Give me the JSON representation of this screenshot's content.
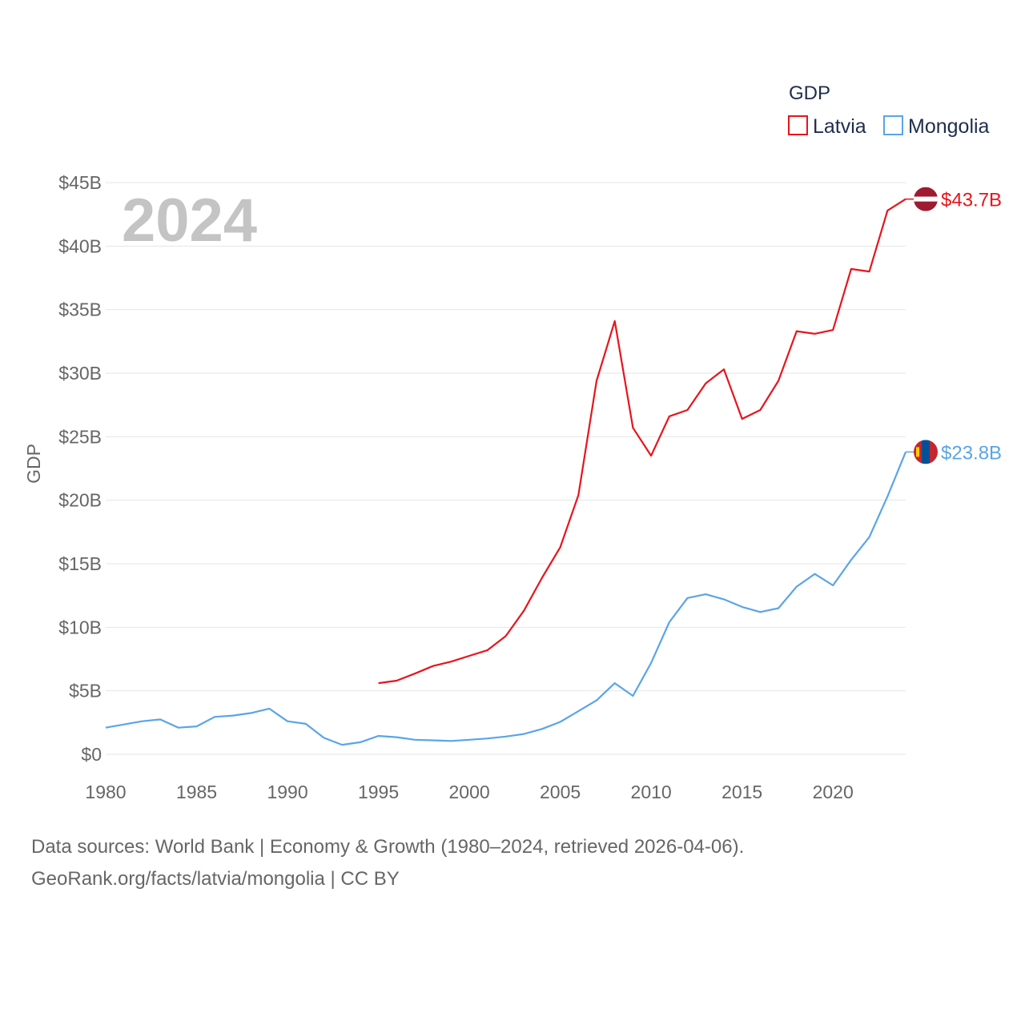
{
  "chart_data": {
    "type": "line",
    "ylabel": "GDP",
    "year_label": "2024",
    "ylim": [
      0,
      45
    ],
    "xlim": [
      1980,
      2024
    ],
    "y_ticks": [
      0,
      5,
      10,
      15,
      20,
      25,
      30,
      35,
      40,
      45
    ],
    "y_tick_labels": [
      "$0",
      "$5B",
      "$10B",
      "$15B",
      "$20B",
      "$25B",
      "$30B",
      "$35B",
      "$40B",
      "$45B"
    ],
    "x_ticks": [
      1980,
      1985,
      1990,
      1995,
      2000,
      2005,
      2010,
      2015,
      2020
    ],
    "x_tick_labels": [
      "1980",
      "1985",
      "1990",
      "1995",
      "2000",
      "2005",
      "2010",
      "2015",
      "2020"
    ],
    "legend": {
      "title": "GDP",
      "position": "top-right"
    },
    "series": [
      {
        "name": "Latvia",
        "color": "#e8141c",
        "end_label": "$43.7B",
        "flag": "latvia-flag-icon",
        "x": [
          1995,
          1996,
          1997,
          1998,
          1999,
          2000,
          2001,
          2002,
          2003,
          2004,
          2005,
          2006,
          2007,
          2008,
          2009,
          2010,
          2011,
          2012,
          2013,
          2014,
          2015,
          2016,
          2017,
          2018,
          2019,
          2020,
          2021,
          2022,
          2023,
          2024
        ],
        "values": [
          5.6,
          5.8,
          6.35,
          6.95,
          7.3,
          7.75,
          8.2,
          9.3,
          11.3,
          13.9,
          16.3,
          20.4,
          29.4,
          34.1,
          25.7,
          23.5,
          26.6,
          27.1,
          29.2,
          30.3,
          26.4,
          27.1,
          29.4,
          33.3,
          33.1,
          33.4,
          38.2,
          38.0,
          42.8,
          43.7
        ]
      },
      {
        "name": "Mongolia",
        "color": "#5aa5e6",
        "end_label": "$23.8B",
        "flag": "mongolia-flag-icon",
        "x": [
          1980,
          1981,
          1982,
          1983,
          1984,
          1985,
          1986,
          1987,
          1988,
          1989,
          1990,
          1991,
          1992,
          1993,
          1994,
          1995,
          1996,
          1997,
          1998,
          1999,
          2000,
          2001,
          2002,
          2003,
          2004,
          2005,
          2006,
          2007,
          2008,
          2009,
          2010,
          2011,
          2012,
          2013,
          2014,
          2015,
          2016,
          2017,
          2018,
          2019,
          2020,
          2021,
          2022,
          2023,
          2024
        ],
        "values": [
          2.1,
          2.35,
          2.6,
          2.75,
          2.1,
          2.2,
          2.95,
          3.05,
          3.25,
          3.6,
          2.6,
          2.4,
          1.3,
          0.75,
          0.95,
          1.45,
          1.35,
          1.15,
          1.1,
          1.05,
          1.15,
          1.25,
          1.4,
          1.6,
          2.0,
          2.55,
          3.4,
          4.25,
          5.6,
          4.6,
          7.2,
          10.4,
          12.3,
          12.6,
          12.2,
          11.6,
          11.2,
          11.5,
          13.2,
          14.2,
          13.3,
          15.3,
          17.1,
          20.3,
          23.8
        ]
      }
    ]
  },
  "footer": {
    "line1": "Data sources: World Bank | Economy & Growth (1980–2024, retrieved 2026-04-06).",
    "line2": "GeoRank.org/facts/latvia/mongolia | CC BY"
  }
}
